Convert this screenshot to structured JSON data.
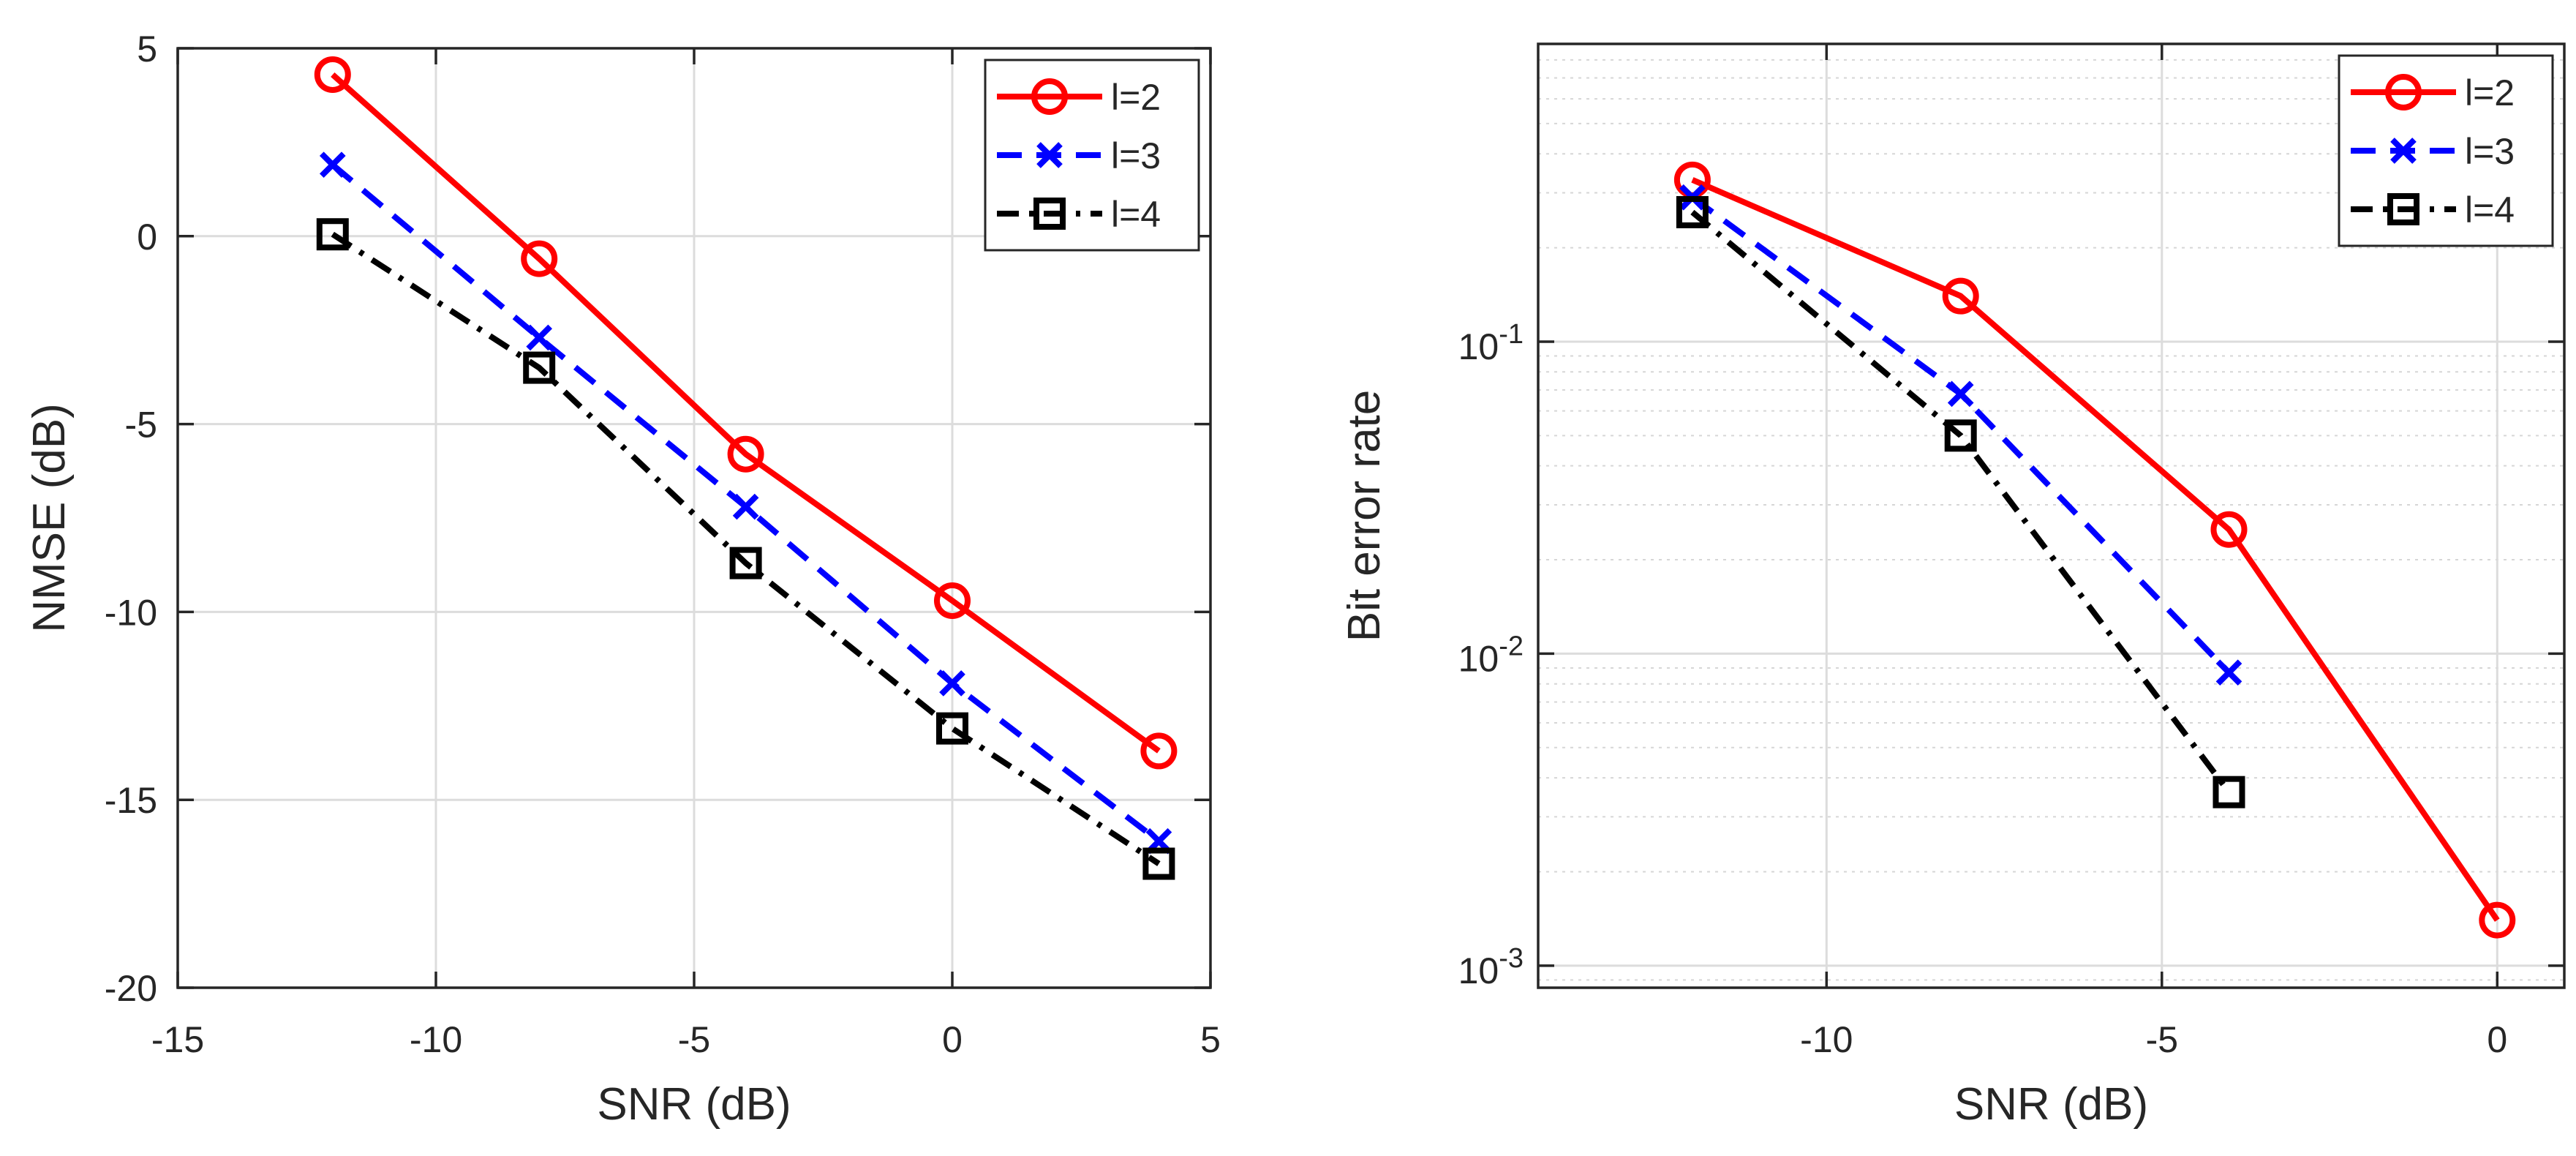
{
  "chart_data": [
    {
      "type": "line",
      "title": "",
      "xlabel": "SNR (dB)",
      "ylabel": "NMSE (dB)",
      "xlim": [
        -15,
        5
      ],
      "ylim": [
        -20,
        5
      ],
      "yscale": "linear",
      "xticks": [
        -15,
        -10,
        -5,
        0,
        5
      ],
      "xtick_labels": [
        "-15",
        "-10",
        "-5",
        "0",
        "5"
      ],
      "yticks": [
        -20,
        -15,
        -10,
        -5,
        0,
        5
      ],
      "ytick_labels": [
        "-20",
        "-15",
        "-10",
        "-5",
        "0",
        "5"
      ],
      "grid": true,
      "legend_position": "top-right",
      "series": [
        {
          "name": "l=2",
          "color": "#ff0000",
          "line": "solid",
          "marker": "circle",
          "x": [
            -12,
            -8,
            -4,
            0,
            4
          ],
          "y": [
            4.3,
            -0.6,
            -5.8,
            -9.7,
            -13.7
          ]
        },
        {
          "name": "l=3",
          "color": "#0000ff",
          "line": "dashed",
          "marker": "x",
          "x": [
            -12,
            -8,
            -4,
            0,
            4
          ],
          "y": [
            1.9,
            -2.7,
            -7.2,
            -11.9,
            -16.1
          ]
        },
        {
          "name": "l=4",
          "color": "#000000",
          "line": "dashdot",
          "marker": "square",
          "x": [
            -12,
            -8,
            -4,
            0,
            4
          ],
          "y": [
            0.05,
            -3.5,
            -8.7,
            -13.1,
            -16.7
          ]
        }
      ]
    },
    {
      "type": "line",
      "title": "",
      "xlabel": "SNR (dB)",
      "ylabel": "Bit error rate",
      "xlim": [
        -14.3,
        1.0
      ],
      "ylim": [
        0.00085,
        0.9
      ],
      "yscale": "log",
      "xticks": [
        -10,
        -5,
        0
      ],
      "xtick_labels": [
        "-10",
        "-5",
        "0"
      ],
      "yticks": [
        0.001,
        0.01,
        0.1
      ],
      "ytick_base": "10",
      "ytick_exponents": [
        "-3",
        "-2",
        "-1"
      ],
      "grid": true,
      "minor_grid": true,
      "legend_position": "top-right",
      "series": [
        {
          "name": "l=2",
          "color": "#ff0000",
          "line": "solid",
          "marker": "circle",
          "x": [
            -12,
            -8,
            -4,
            0
          ],
          "y": [
            0.33,
            0.14,
            0.025,
            0.0014
          ]
        },
        {
          "name": "l=3",
          "color": "#0000ff",
          "line": "dashed",
          "marker": "x",
          "x": [
            -12,
            -8,
            -4
          ],
          "y": [
            0.29,
            0.068,
            0.0087
          ]
        },
        {
          "name": "l=4",
          "color": "#000000",
          "line": "dashdot",
          "marker": "square",
          "x": [
            -12,
            -8,
            -4
          ],
          "y": [
            0.26,
            0.05,
            0.0036
          ]
        }
      ]
    }
  ]
}
